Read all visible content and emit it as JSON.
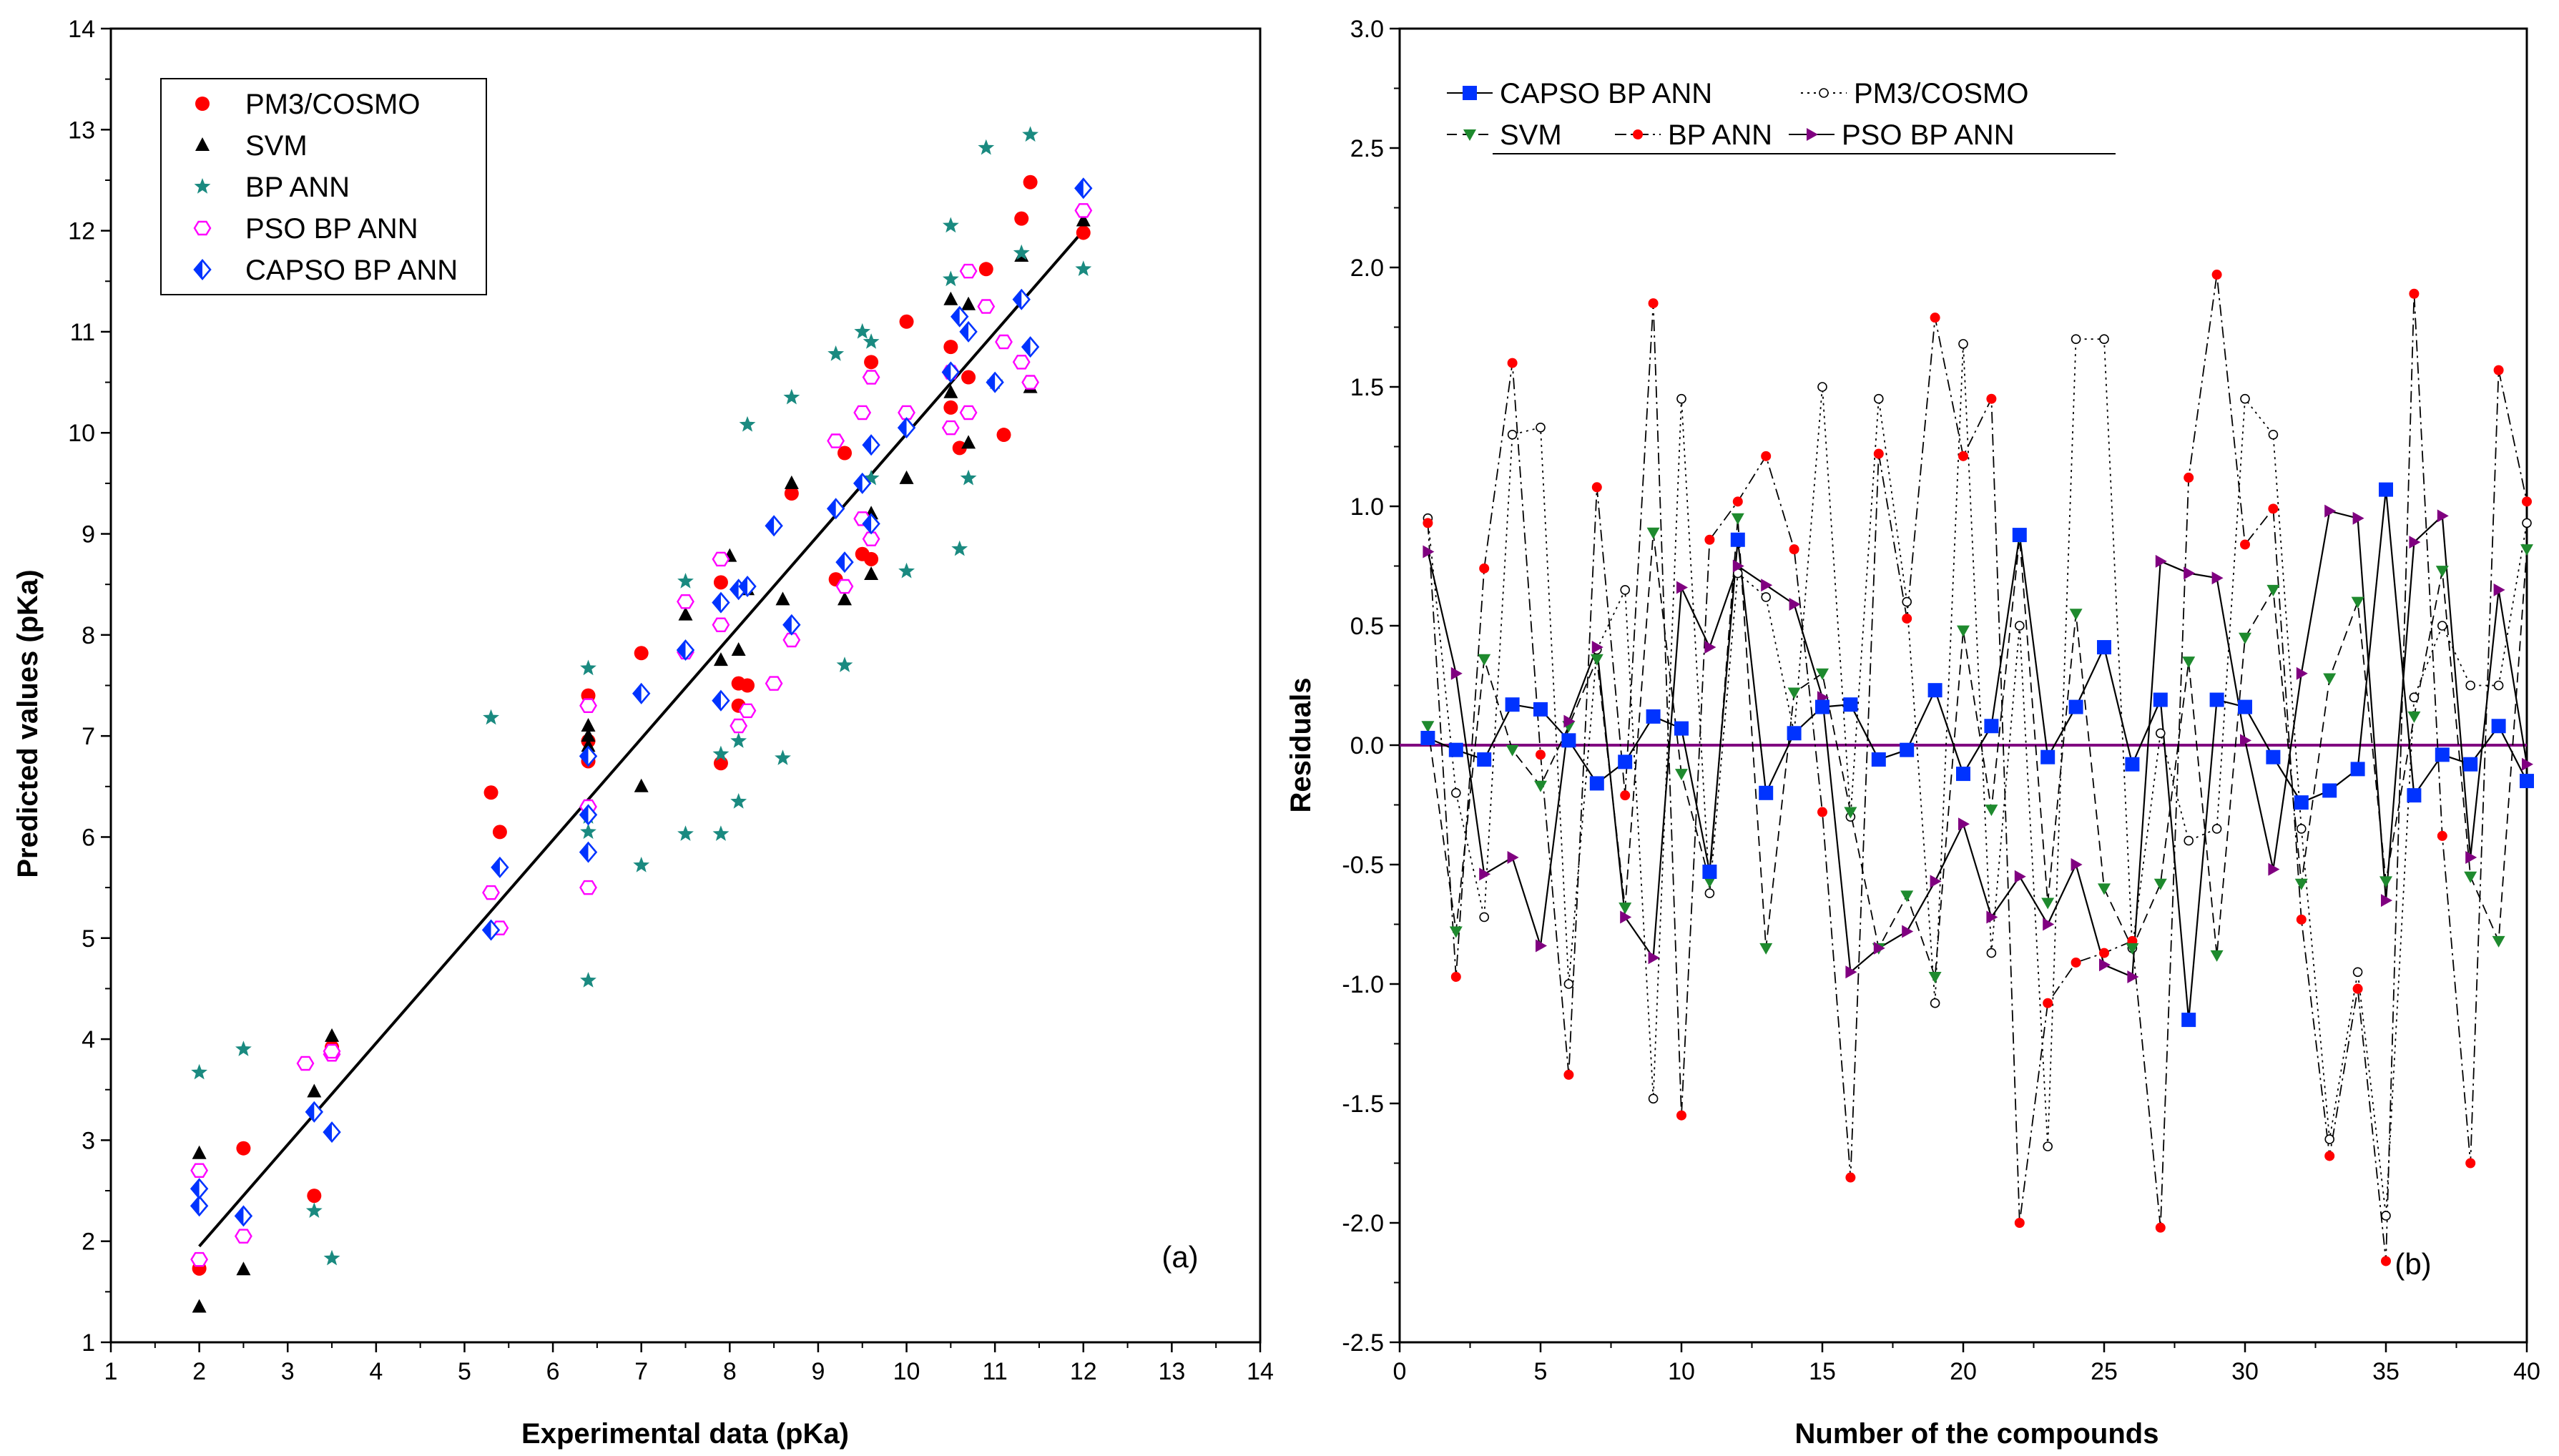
{
  "colors": {
    "pm3": "#ff0000",
    "svm_left": "#000000",
    "bpann_left": "#1a8a80",
    "pso": "#ff00ff",
    "capso": "#0033ff",
    "svm_right": "#1e8a2e",
    "bpann_right": "#ff0000",
    "pso_right": "#800080",
    "axis": "#000000"
  },
  "chart_data": [
    {
      "type": "scatter",
      "panel_label": "(a)",
      "xlabel": "Experimental data (pKa)",
      "ylabel": "Predicted values (pKa)",
      "xlim": [
        1,
        14
      ],
      "ylim": [
        1,
        14
      ],
      "xticks": [
        "1",
        "2",
        "3",
        "4",
        "5",
        "6",
        "7",
        "8",
        "9",
        "10",
        "11",
        "12",
        "13",
        "14"
      ],
      "yticks": [
        "1",
        "2",
        "3",
        "4",
        "5",
        "6",
        "7",
        "8",
        "9",
        "10",
        "11",
        "12",
        "13",
        "14"
      ],
      "legend_position": "top-left",
      "fit_line": {
        "x": [
          2,
          12
        ],
        "y": [
          1.95,
          12.0
        ]
      },
      "series": [
        {
          "name": "PM3/COSMO",
          "marker": "circle",
          "x": [
            2.0,
            2.5,
            3.3,
            3.5,
            5.3,
            5.4,
            6.4,
            6.4,
            6.4,
            7.0,
            7.9,
            7.9,
            8.1,
            8.1,
            8.2,
            8.7,
            9.2,
            9.3,
            9.5,
            9.6,
            9.6,
            10.0,
            10.5,
            10.5,
            10.6,
            10.7,
            10.9,
            11.1,
            11.3,
            11.4,
            12.0
          ],
          "y": [
            1.73,
            2.92,
            2.45,
            3.92,
            6.44,
            6.05,
            7.4,
            6.95,
            6.75,
            7.82,
            8.52,
            6.73,
            7.3,
            7.52,
            7.5,
            9.4,
            8.55,
            9.8,
            8.8,
            8.75,
            10.7,
            11.1,
            10.85,
            10.25,
            9.85,
            10.55,
            11.62,
            9.98,
            12.12,
            12.48,
            11.98
          ]
        },
        {
          "name": "SVM",
          "marker": "triangle",
          "x": [
            2.0,
            2.0,
            2.5,
            3.3,
            3.5,
            6.4,
            6.4,
            6.4,
            7.0,
            7.5,
            7.9,
            8.0,
            8.1,
            8.2,
            8.6,
            8.7,
            9.3,
            9.6,
            9.6,
            10.0,
            10.5,
            10.5,
            10.7,
            10.7,
            11.3,
            11.4,
            12.0
          ],
          "y": [
            1.35,
            2.87,
            1.72,
            3.48,
            4.03,
            7.1,
            7.0,
            6.9,
            6.5,
            8.2,
            7.75,
            8.78,
            7.85,
            8.45,
            8.35,
            9.5,
            8.35,
            8.6,
            9.2,
            9.55,
            11.32,
            10.4,
            11.27,
            9.9,
            11.75,
            10.45,
            12.1
          ]
        },
        {
          "name": "BP ANN",
          "marker": "star",
          "x": [
            2.0,
            2.5,
            3.3,
            3.5,
            5.3,
            6.4,
            6.4,
            6.4,
            6.4,
            7.0,
            7.5,
            7.5,
            7.9,
            7.9,
            8.1,
            8.1,
            8.2,
            8.6,
            8.7,
            9.2,
            9.3,
            9.5,
            9.6,
            9.6,
            10.0,
            10.5,
            10.5,
            10.6,
            10.7,
            10.9,
            11.0,
            11.3,
            11.4,
            12.0
          ],
          "y": [
            3.67,
            3.9,
            2.3,
            1.83,
            7.18,
            7.67,
            6.05,
            6.2,
            4.58,
            5.72,
            8.53,
            6.03,
            6.82,
            6.03,
            6.95,
            6.35,
            10.08,
            6.78,
            10.35,
            10.78,
            7.7,
            11.0,
            10.9,
            9.55,
            8.63,
            12.05,
            11.52,
            8.85,
            9.55,
            12.82,
            10.5,
            11.78,
            12.95,
            11.62
          ]
        },
        {
          "name": "PSO BP ANN",
          "marker": "open-hexagon",
          "x": [
            2.0,
            2.0,
            2.5,
            3.2,
            3.5,
            3.5,
            5.3,
            5.4,
            6.4,
            6.4,
            6.4,
            7.5,
            7.5,
            7.9,
            7.9,
            8.1,
            8.2,
            8.5,
            8.7,
            9.2,
            9.3,
            9.5,
            9.5,
            9.6,
            9.6,
            10.0,
            10.5,
            10.5,
            10.7,
            10.7,
            10.9,
            11.1,
            11.3,
            11.4,
            12.0
          ],
          "y": [
            1.82,
            2.7,
            2.05,
            3.76,
            3.85,
            3.88,
            5.45,
            5.1,
            5.5,
            6.3,
            7.3,
            8.33,
            7.83,
            8.1,
            8.75,
            7.1,
            7.25,
            7.52,
            7.95,
            9.92,
            8.48,
            9.15,
            10.2,
            10.55,
            8.95,
            10.2,
            10.05,
            10.6,
            10.2,
            11.6,
            11.25,
            10.9,
            10.7,
            10.5,
            12.2
          ]
        },
        {
          "name": "CAPSO BP ANN",
          "marker": "diamond",
          "x": [
            2.0,
            2.0,
            2.5,
            3.3,
            3.5,
            5.3,
            5.4,
            6.4,
            6.4,
            6.4,
            7.0,
            7.5,
            7.9,
            7.9,
            8.1,
            8.2,
            8.5,
            8.7,
            9.2,
            9.3,
            9.5,
            9.6,
            9.6,
            10.0,
            10.5,
            10.6,
            10.7,
            11.0,
            11.3,
            11.4,
            12.0
          ],
          "y": [
            2.35,
            2.52,
            2.25,
            3.28,
            3.08,
            5.08,
            5.7,
            5.85,
            6.22,
            6.8,
            7.42,
            7.85,
            7.35,
            8.32,
            8.45,
            8.48,
            9.08,
            8.1,
            9.25,
            8.72,
            9.5,
            9.88,
            9.1,
            10.05,
            10.6,
            11.15,
            11.0,
            10.5,
            11.32,
            10.85,
            12.42
          ]
        }
      ]
    },
    {
      "type": "line",
      "panel_label": "(b)",
      "xlabel": "Number of the compounds",
      "ylabel": "Residuals",
      "xlim": [
        0,
        40
      ],
      "ylim": [
        -2.5,
        3.0
      ],
      "xticks": [
        "0",
        "5",
        "10",
        "15",
        "20",
        "25",
        "30",
        "35",
        "40"
      ],
      "yticks": [
        "-2.5",
        "-2.0",
        "-1.5",
        "-1.0",
        "-0.5",
        "0.0",
        "0.5",
        "1.0",
        "1.5",
        "2.0",
        "2.5",
        "3.0"
      ],
      "legend_position": "top-left",
      "zero_line": 0.0,
      "x": [
        1,
        2,
        3,
        4,
        5,
        6,
        7,
        8,
        9,
        10,
        11,
        12,
        13,
        14,
        15,
        16,
        17,
        18,
        19,
        20,
        21,
        22,
        23,
        24,
        25,
        26,
        27,
        28,
        29,
        30,
        31,
        32,
        33,
        34,
        35,
        36,
        37,
        38,
        39,
        40
      ],
      "series": [
        {
          "name": "CAPSO BP ANN",
          "marker": "square",
          "line": "solid",
          "values": [
            0.03,
            -0.02,
            -0.06,
            0.17,
            0.15,
            0.02,
            -0.16,
            -0.07,
            0.12,
            0.07,
            -0.53,
            0.86,
            -0.2,
            0.05,
            0.16,
            0.17,
            -0.06,
            -0.02,
            0.23,
            -0.12,
            0.08,
            0.88,
            -0.05,
            0.16,
            0.41,
            -0.08,
            0.19,
            -1.15,
            0.19,
            0.16,
            -0.05,
            -0.24,
            -0.19,
            -0.1,
            1.07,
            -0.21,
            -0.04,
            -0.08,
            0.08,
            -0.15
          ]
        },
        {
          "name": "PM3/COSMO",
          "marker": "open-circle",
          "line": "dotted",
          "values": [
            0.95,
            -0.2,
            -0.72,
            1.3,
            1.33,
            -1.0,
            0.4,
            0.65,
            -1.48,
            1.45,
            -0.62,
            0.72,
            0.62,
            0.05,
            1.5,
            -0.3,
            1.45,
            0.6,
            -1.08,
            1.68,
            -0.87,
            0.5,
            -1.68,
            1.7,
            1.7,
            -0.85,
            0.05,
            -0.4,
            -0.35,
            1.45,
            1.3,
            -0.35,
            -1.65,
            -0.95,
            -1.97,
            0.2,
            0.5,
            0.25,
            0.25,
            0.93
          ]
        },
        {
          "name": "SVM",
          "marker": "triangle-down",
          "line": "dashed",
          "values": [
            0.08,
            -0.78,
            0.36,
            -0.02,
            -0.17,
            0.08,
            0.36,
            -0.68,
            0.89,
            -0.12,
            -0.57,
            0.95,
            -0.85,
            0.22,
            0.3,
            -0.28,
            -0.85,
            -0.63,
            -0.97,
            0.48,
            -0.27,
            0.87,
            -0.66,
            0.55,
            -0.6,
            -0.85,
            -0.58,
            0.35,
            -0.88,
            0.45,
            0.65,
            -0.58,
            0.28,
            0.6,
            -0.57,
            0.12,
            0.73,
            -0.55,
            -0.82,
            0.82
          ]
        },
        {
          "name": "BP ANN",
          "marker": "dot",
          "line": "dash-dot",
          "values": [
            0.93,
            -0.97,
            0.74,
            1.6,
            -0.04,
            -1.38,
            1.08,
            -0.21,
            1.85,
            -1.55,
            0.86,
            1.02,
            1.21,
            0.82,
            -0.28,
            -1.81,
            1.22,
            0.53,
            1.79,
            1.21,
            1.45,
            -2.0,
            -1.08,
            -0.91,
            -0.87,
            -0.82,
            -2.02,
            1.12,
            1.97,
            0.84,
            0.99,
            -0.73,
            -1.72,
            -1.02,
            -2.16,
            1.89,
            -0.38,
            -1.75,
            1.57,
            1.02
          ]
        },
        {
          "name": "PSO BP ANN",
          "marker": "triangle-right",
          "line": "solid",
          "values": [
            0.81,
            0.3,
            -0.54,
            -0.47,
            -0.84,
            0.1,
            0.41,
            -0.72,
            -0.89,
            0.66,
            0.41,
            0.75,
            0.67,
            0.59,
            0.2,
            -0.95,
            -0.85,
            -0.78,
            -0.57,
            -0.33,
            -0.72,
            -0.55,
            -0.75,
            -0.5,
            -0.92,
            -0.97,
            0.77,
            0.72,
            0.7,
            0.02,
            -0.52,
            0.3,
            0.98,
            0.95,
            -0.65,
            0.85,
            0.96,
            -0.47,
            0.65,
            -0.08
          ]
        }
      ]
    }
  ]
}
